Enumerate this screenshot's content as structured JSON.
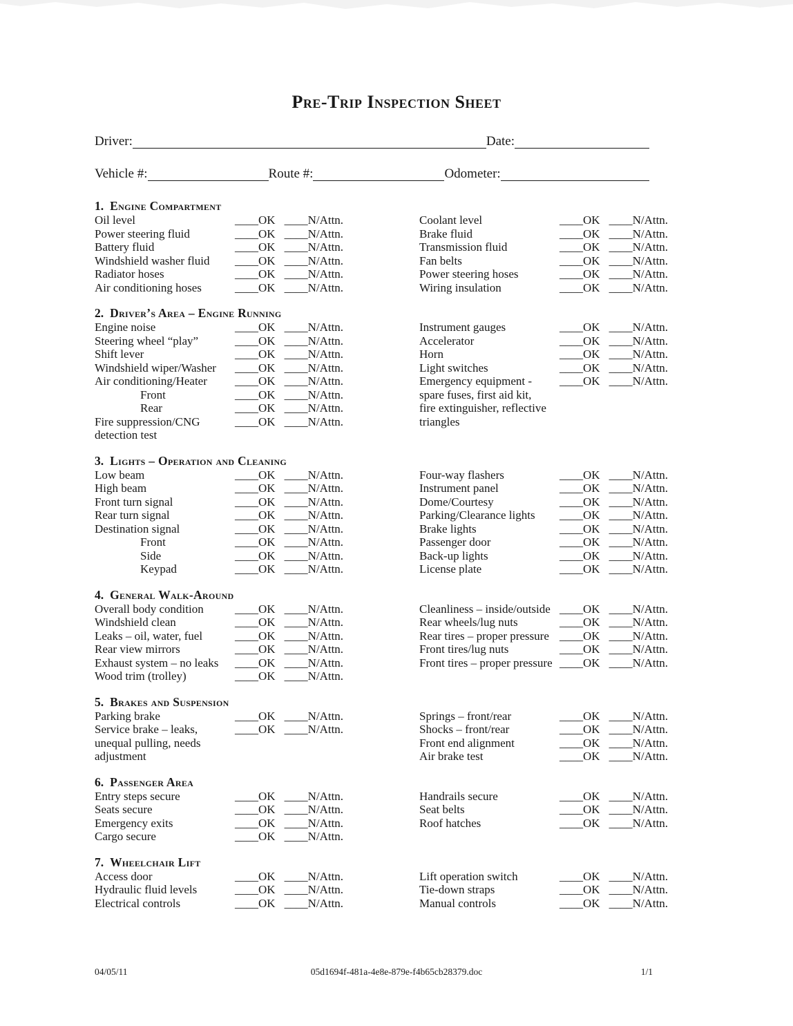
{
  "title": "Pre-Trip Inspection Sheet",
  "header": {
    "driver_label": "Driver:",
    "date_label": "Date:",
    "vehicle_label": "Vehicle #:",
    "route_label": "Route #:",
    "odometer_label": "Odometer:"
  },
  "check": {
    "blank": "____",
    "ok_label": "OK",
    "na_label": "N/Attn."
  },
  "sections": [
    {
      "number": "1",
      "title": "Engine Compartment",
      "left": [
        {
          "label": "Oil level",
          "check": true
        },
        {
          "label": "Power steering fluid",
          "check": true
        },
        {
          "label": "Battery fluid",
          "check": true
        },
        {
          "label": "Windshield washer fluid",
          "check": true
        },
        {
          "label": "Radiator hoses",
          "check": true
        },
        {
          "label": "Air conditioning hoses",
          "check": true
        }
      ],
      "right": [
        {
          "label": "Coolant level",
          "check": true
        },
        {
          "label": "Brake fluid",
          "check": true
        },
        {
          "label": "Transmission fluid",
          "check": true
        },
        {
          "label": "Fan belts",
          "check": true
        },
        {
          "label": "Power steering hoses",
          "check": true
        },
        {
          "label": "Wiring insulation",
          "check": true
        }
      ]
    },
    {
      "number": "2",
      "title": "Driver’s Area – Engine Running",
      "left": [
        {
          "label": "Engine noise",
          "check": true
        },
        {
          "label": "Steering wheel “play”",
          "check": true
        },
        {
          "label": "Shift lever",
          "check": true
        },
        {
          "label": "Windshield wiper/Washer",
          "check": true
        },
        {
          "label": "Air conditioning/Heater",
          "check": true
        },
        {
          "label": "Front",
          "check": true,
          "indent": true
        },
        {
          "label": "Rear",
          "check": true,
          "indent": true
        },
        {
          "label": "Fire suppression/CNG",
          "check": true
        },
        {
          "label": "detection test",
          "check": false
        }
      ],
      "right": [
        {
          "label": "Instrument gauges",
          "check": true
        },
        {
          "label": "Accelerator",
          "check": true
        },
        {
          "label": "Horn",
          "check": true
        },
        {
          "label": "Light switches",
          "check": true
        },
        {
          "label": "Emergency equipment -",
          "check": true
        },
        {
          "label": "spare fuses, first aid kit,",
          "check": false
        },
        {
          "label": "fire extinguisher, reflective",
          "check": false
        },
        {
          "label": "triangles",
          "check": false
        }
      ]
    },
    {
      "number": "3",
      "title": "Lights – Operation and Cleaning",
      "left": [
        {
          "label": "Low beam",
          "check": true
        },
        {
          "label": "High beam",
          "check": true
        },
        {
          "label": "Front turn signal",
          "check": true
        },
        {
          "label": "Rear turn signal",
          "check": true
        },
        {
          "label": "Destination signal",
          "check": true
        },
        {
          "label": "Front",
          "check": true,
          "indent": true
        },
        {
          "label": "Side",
          "check": true,
          "indent": true
        },
        {
          "label": "Keypad",
          "check": true,
          "indent": true
        }
      ],
      "right": [
        {
          "label": "Four-way flashers",
          "check": true
        },
        {
          "label": "Instrument panel",
          "check": true
        },
        {
          "label": "Dome/Courtesy",
          "check": true
        },
        {
          "label": "Parking/Clearance lights",
          "check": true
        },
        {
          "label": "Brake lights",
          "check": true
        },
        {
          "label": "Passenger door",
          "check": true
        },
        {
          "label": "Back-up lights",
          "check": true
        },
        {
          "label": "License plate",
          "check": true
        }
      ]
    },
    {
      "number": "4",
      "title": "General Walk-Around",
      "left": [
        {
          "label": "Overall body condition",
          "check": true
        },
        {
          "label": "Windshield clean",
          "check": true
        },
        {
          "label": "Leaks – oil, water, fuel",
          "check": true
        },
        {
          "label": "Rear view mirrors",
          "check": true
        },
        {
          "label": "Exhaust system – no leaks",
          "check": true
        },
        {
          "label": "Wood trim (trolley)",
          "check": true
        }
      ],
      "right": [
        {
          "label": "Cleanliness – inside/outside",
          "check": true
        },
        {
          "label": "Rear wheels/lug nuts",
          "check": true
        },
        {
          "label": "Rear tires – proper pressure",
          "check": true
        },
        {
          "label": "Front tires/lug nuts",
          "check": true
        },
        {
          "label": "Front tires – proper pressure",
          "check": true
        }
      ]
    },
    {
      "number": "5",
      "title": "Brakes and Suspension",
      "left": [
        {
          "label": "Parking brake",
          "check": true
        },
        {
          "label": "Service brake – leaks,",
          "check": true
        },
        {
          "label": "unequal pulling, needs",
          "check": false
        },
        {
          "label": "adjustment",
          "check": false
        }
      ],
      "right": [
        {
          "label": "Springs – front/rear",
          "check": true
        },
        {
          "label": "Shocks – front/rear",
          "check": true
        },
        {
          "label": "Front end alignment",
          "check": true
        },
        {
          "label": "Air brake test",
          "check": true
        }
      ]
    },
    {
      "number": "6",
      "title": "Passenger Area",
      "left": [
        {
          "label": "Entry steps secure",
          "check": true
        },
        {
          "label": "Seats secure",
          "check": true
        },
        {
          "label": "Emergency exits",
          "check": true
        },
        {
          "label": "Cargo secure",
          "check": true
        }
      ],
      "right": [
        {
          "label": "Handrails secure",
          "check": true
        },
        {
          "label": "Seat belts",
          "check": true
        },
        {
          "label": "Roof hatches",
          "check": true
        }
      ]
    },
    {
      "number": "7",
      "title": "Wheelchair Lift",
      "left": [
        {
          "label": "Access door",
          "check": true
        },
        {
          "label": "Hydraulic fluid levels",
          "check": true
        },
        {
          "label": "Electrical controls",
          "check": true
        }
      ],
      "right": [
        {
          "label": "Lift operation switch",
          "check": true
        },
        {
          "label": "Tie-down straps",
          "check": true
        },
        {
          "label": "Manual controls",
          "check": true
        }
      ]
    }
  ],
  "footer": {
    "date": "04/05/11",
    "filename": "05d1694f-481a-4e8e-879e-f4b65cb28379.doc",
    "page": "1/1"
  }
}
